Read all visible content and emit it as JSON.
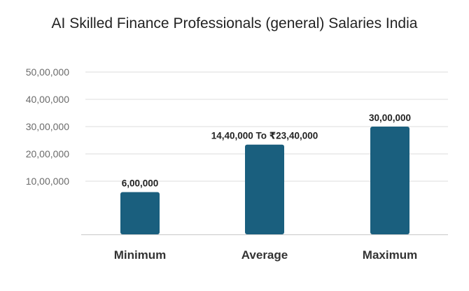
{
  "chart_data": {
    "type": "bar",
    "title": "AI Skilled Finance Professionals (general) Salaries India",
    "xlabel": "",
    "ylabel": "",
    "categories": [
      "Minimum",
      "Average",
      "Maximum"
    ],
    "values": [
      600000,
      2340000,
      3000000
    ],
    "data_labels": [
      "6,00,000",
      "14,40,000 To ₹23,40,000",
      "30,00,000"
    ],
    "y_ticks": [
      {
        "value": 1000000,
        "label": "10,00,000"
      },
      {
        "value": 2000000,
        "label": "20,00,000"
      },
      {
        "value": 3000000,
        "label": "30,00,000"
      },
      {
        "value": 4000000,
        "label": "40,00,000"
      },
      {
        "value": 5000000,
        "label": "50,00,000"
      }
    ],
    "ylim": [
      0,
      5000000
    ],
    "grid": true,
    "legend": "none",
    "bar_color": "#1a5f7e"
  }
}
